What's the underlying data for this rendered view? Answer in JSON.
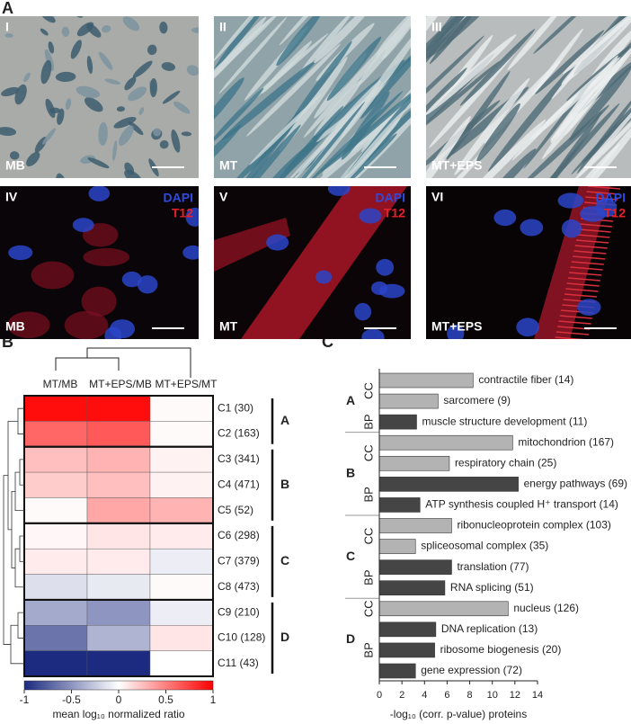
{
  "panels": {
    "a": "A",
    "b": "B",
    "c": "C"
  },
  "micrographs": [
    {
      "numeral": "I",
      "condition": "MB"
    },
    {
      "numeral": "II",
      "condition": "MT"
    },
    {
      "numeral": "III",
      "condition": "MT+EPS"
    },
    {
      "numeral": "IV",
      "condition": "MB"
    },
    {
      "numeral": "V",
      "condition": "MT"
    },
    {
      "numeral": "VI",
      "condition": "MT+EPS"
    }
  ],
  "stains": [
    "DAPI",
    "T12"
  ],
  "chart_data": [
    {
      "type": "heatmap",
      "columns": [
        "MT/MB",
        "MT+EPS/MB",
        "MT+EPS/MT"
      ],
      "rows": [
        "C1 (30)",
        "C2 (163)",
        "C3 (341)",
        "C4 (471)",
        "C5 (52)",
        "C6 (298)",
        "C7 (379)",
        "C8 (473)",
        "C9 (210)",
        "C10 (128)",
        "C11 (43)"
      ],
      "row_groups": [
        "A",
        "A",
        "B",
        "B",
        "B",
        "C",
        "C",
        "C",
        "D",
        "D",
        "D"
      ],
      "values": [
        [
          0.95,
          0.95,
          0.02
        ],
        [
          0.6,
          0.65,
          0.02
        ],
        [
          0.25,
          0.3,
          0.05
        ],
        [
          0.2,
          0.25,
          0.05
        ],
        [
          0.02,
          0.35,
          0.3
        ],
        [
          0.03,
          0.1,
          0.08
        ],
        [
          0.08,
          0.08,
          -0.08
        ],
        [
          -0.15,
          -0.1,
          0.02
        ],
        [
          -0.4,
          -0.5,
          -0.08
        ],
        [
          -0.65,
          -0.35,
          0.1
        ],
        [
          -1,
          -1,
          0
        ]
      ],
      "colorbar": {
        "label": "mean log₁₀ normalized ratio",
        "lim": [
          -1,
          1
        ],
        "ticks": [
          -1,
          -0.5,
          0,
          0.5,
          1
        ],
        "colors": [
          "#1c2a80",
          "#ffffff",
          "#ff0000"
        ]
      }
    },
    {
      "type": "bar",
      "orientation": "horizontal",
      "xlabel": "-log₁₀ (corr. p-value) proteins",
      "xlim": [
        0,
        14
      ],
      "xticks": [
        0,
        2,
        4,
        6,
        8,
        10,
        12,
        14
      ],
      "groups": [
        {
          "label": "A",
          "subgroups": [
            {
              "label": "CC",
              "color": "#b3b3b3",
              "categories": [
                "contractile fiber (14)",
                "sarcomere (9)"
              ],
              "values": [
                8.3,
                5.2
              ]
            },
            {
              "label": "BP",
              "color": "#454545",
              "categories": [
                "muscle structure development (11)"
              ],
              "values": [
                3.3
              ]
            }
          ]
        },
        {
          "label": "B",
          "subgroups": [
            {
              "label": "CC",
              "color": "#b3b3b3",
              "categories": [
                "mitochondrion (167)",
                "respiratory chain (25)"
              ],
              "values": [
                11.8,
                6.2
              ]
            },
            {
              "label": "BP",
              "color": "#454545",
              "categories": [
                "energy pathways (69)",
                "ATP synthesis coupled H⁺ transport (14)"
              ],
              "values": [
                12.3,
                3.6
              ]
            }
          ]
        },
        {
          "label": "C",
          "subgroups": [
            {
              "label": "CC",
              "color": "#b3b3b3",
              "categories": [
                "ribonucleoprotein complex (103)",
                "spliceosomal complex  (35)"
              ],
              "values": [
                6.4,
                3.2
              ]
            },
            {
              "label": "BP",
              "color": "#454545",
              "categories": [
                "translation (77)",
                "RNA splicing (51)"
              ],
              "values": [
                6.4,
                5.8
              ]
            }
          ]
        },
        {
          "label": "D",
          "subgroups": [
            {
              "label": "CC",
              "color": "#b3b3b3",
              "categories": [
                "nucleus (126)"
              ],
              "values": [
                11.4
              ]
            },
            {
              "label": "BP",
              "color": "#454545",
              "categories": [
                "DNA replication (13)",
                "ribosome biogenesis (20)",
                "gene expression (72)"
              ],
              "values": [
                5.0,
                4.9,
                3.2
              ]
            }
          ]
        }
      ]
    }
  ]
}
